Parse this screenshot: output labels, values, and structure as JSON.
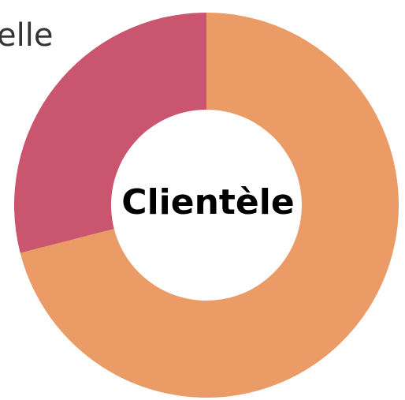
{
  "chart_data": {
    "type": "donut",
    "center_label": "Clientèle",
    "annotations": [
      "elle"
    ],
    "values": [
      71,
      29
    ],
    "colors": [
      "#eb9b65",
      "#c9566e"
    ]
  }
}
